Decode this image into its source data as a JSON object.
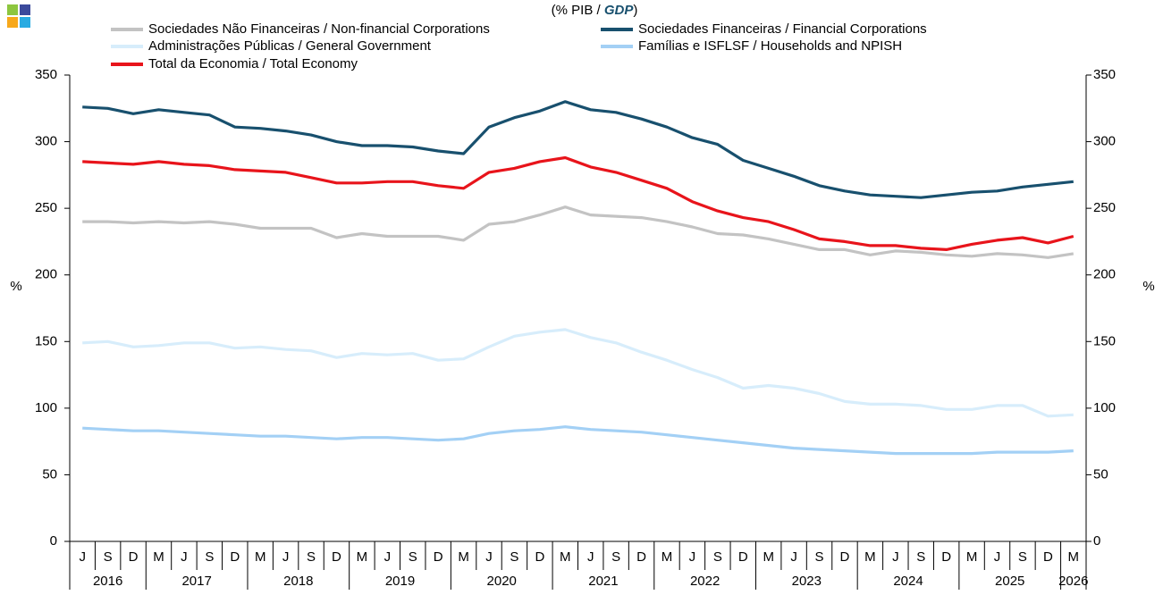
{
  "chart_data": {
    "type": "line",
    "subtitle": {
      "prefix": "(% PIB / ",
      "emph": "GDP",
      "suffix": ")"
    },
    "ylabel": "%",
    "y2label": "%",
    "categories": [
      "J",
      "S",
      "D",
      "M",
      "J",
      "S",
      "D",
      "M",
      "J",
      "S",
      "D",
      "M",
      "J",
      "S",
      "D",
      "M",
      "J",
      "S",
      "D",
      "M",
      "J",
      "S",
      "D",
      "M",
      "J",
      "S",
      "D",
      "M",
      "J",
      "S",
      "D",
      "M",
      "J",
      "S",
      "D",
      "M",
      "J",
      "S",
      "D",
      "M"
    ],
    "years": [
      "2016",
      "2017",
      "2018",
      "2019",
      "2020",
      "2021",
      "2022",
      "2023",
      "2024",
      "2025",
      "2026"
    ],
    "ylim": [
      0,
      350
    ],
    "yticks": [
      0,
      50,
      100,
      150,
      200,
      250,
      300,
      350
    ],
    "y2lim": [
      0,
      350
    ],
    "y2ticks": [
      0,
      50,
      100,
      150,
      200,
      250,
      300,
      350
    ],
    "series": [
      {
        "name": "Sociedades Não Financeiras / Non-financial Corporations",
        "color": "#c3c3c3",
        "values": [
          240,
          240,
          239,
          240,
          239,
          240,
          238,
          235,
          235,
          235,
          228,
          231,
          229,
          229,
          229,
          226,
          238,
          240,
          245,
          251,
          245,
          244,
          243,
          240,
          236,
          231,
          230,
          227,
          223,
          219,
          219,
          215,
          218,
          217,
          215,
          214,
          216,
          215,
          213,
          216
        ]
      },
      {
        "name": "Sociedades Financeiras / Financial Corporations",
        "color": "#18506e",
        "values": [
          326,
          325,
          321,
          324,
          322,
          320,
          311,
          310,
          308,
          305,
          300,
          297,
          297,
          296,
          293,
          291,
          311,
          318,
          323,
          330,
          324,
          322,
          317,
          311,
          303,
          298,
          286,
          280,
          274,
          267,
          263,
          260,
          259,
          258,
          260,
          262,
          263,
          266,
          268,
          270
        ]
      },
      {
        "name": "Administrações Públicas / General Government",
        "color": "#d7edfb",
        "values": [
          149,
          150,
          146,
          147,
          149,
          149,
          145,
          146,
          144,
          143,
          138,
          141,
          140,
          141,
          136,
          137,
          146,
          154,
          157,
          159,
          153,
          149,
          142,
          136,
          129,
          123,
          115,
          117,
          115,
          111,
          105,
          103,
          103,
          102,
          99,
          99,
          102,
          102,
          94,
          95
        ]
      },
      {
        "name": "Famílias e ISFLSF / Households and NPISH",
        "color": "#a3d0f5",
        "values": [
          85,
          84,
          83,
          83,
          82,
          81,
          80,
          79,
          79,
          78,
          77,
          78,
          78,
          77,
          76,
          77,
          81,
          83,
          84,
          86,
          84,
          83,
          82,
          80,
          78,
          76,
          74,
          72,
          70,
          69,
          68,
          67,
          66,
          66,
          66,
          66,
          67,
          67,
          67,
          68
        ]
      },
      {
        "name": "Total da Economia / Total Economy",
        "color": "#e8141b",
        "values": [
          285,
          284,
          283,
          285,
          283,
          282,
          279,
          278,
          277,
          273,
          269,
          269,
          270,
          270,
          267,
          265,
          277,
          280,
          285,
          288,
          281,
          277,
          271,
          265,
          255,
          248,
          243,
          240,
          234,
          227,
          225,
          222,
          222,
          220,
          219,
          223,
          226,
          228,
          224,
          229
        ]
      }
    ]
  }
}
